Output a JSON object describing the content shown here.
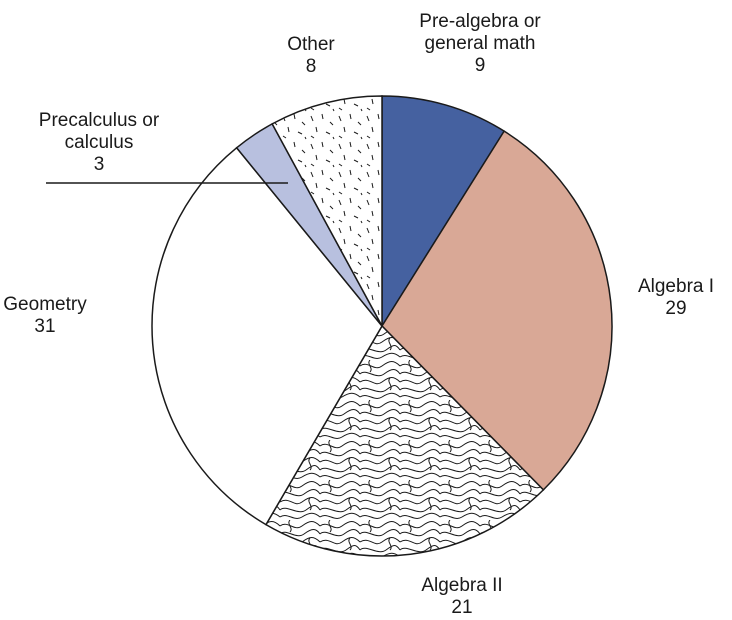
{
  "chart_data": {
    "type": "pie",
    "title": "",
    "slices": [
      {
        "label_lines": [
          "Pre-algebra or",
          "general math"
        ],
        "value": 9,
        "value_text": "9",
        "color": "#4561a0",
        "pattern": "solid"
      },
      {
        "label_lines": [
          "Algebra I"
        ],
        "value": 29,
        "value_text": "29",
        "color": "#d9a896",
        "pattern": "solid"
      },
      {
        "label_lines": [
          "Algebra II"
        ],
        "value": 21,
        "value_text": "21",
        "color": "#ffffff",
        "pattern": "contour"
      },
      {
        "label_lines": [
          "Geometry"
        ],
        "value": 31,
        "value_text": "31",
        "color": "#ffffff",
        "pattern": "none"
      },
      {
        "label_lines": [
          "Precalculus or",
          "calculus"
        ],
        "value": 3,
        "value_text": "3",
        "color": "#b8c0df",
        "pattern": "solid"
      },
      {
        "label_lines": [
          "Other"
        ],
        "value": 8,
        "value_text": "8",
        "color": "#ffffff",
        "pattern": "dashes"
      }
    ],
    "start": "12 o'clock",
    "direction": "clockwise",
    "legend": "none",
    "stroke_color": "#1a1a1a"
  }
}
